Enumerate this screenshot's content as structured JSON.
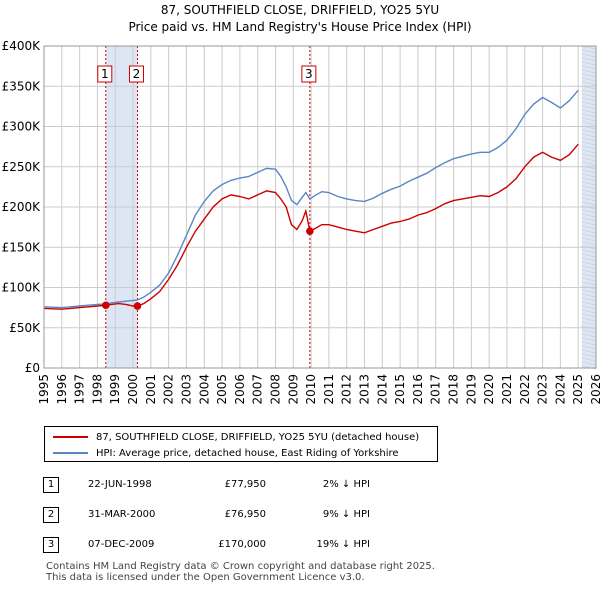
{
  "title": "87, SOUTHFIELD CLOSE, DRIFFIELD, YO25 5YU",
  "subtitle": "Price paid vs. HM Land Registry's House Price Index (HPI)",
  "colors": {
    "price_line": "#cc0000",
    "hpi_line": "#5a86c6",
    "band": "#dde6f5",
    "marker_line": "#cc0000",
    "grid": "#cccccc"
  },
  "legend": {
    "price_label": "87, SOUTHFIELD CLOSE, DRIFFIELD, YO25 5YU (detached house)",
    "hpi_label": "HPI: Average price, detached house, East Riding of Yorkshire"
  },
  "sales": [
    {
      "num": "1",
      "date": "22-JUN-1998",
      "price": "£77,950",
      "hpi": "2% ↓ HPI"
    },
    {
      "num": "2",
      "date": "31-MAR-2000",
      "price": "£76,950",
      "hpi": "9% ↓ HPI"
    },
    {
      "num": "3",
      "date": "07-DEC-2009",
      "price": "£170,000",
      "hpi": "19% ↓ HPI"
    }
  ],
  "footer": {
    "line1": "Contains HM Land Registry data © Crown copyright and database right 2025.",
    "line2": "This data is licensed under the Open Government Licence v3.0."
  },
  "chart_data": {
    "type": "line",
    "title": "87, SOUTHFIELD CLOSE, DRIFFIELD, YO25 5YU",
    "subtitle": "Price paid vs. HM Land Registry's House Price Index (HPI)",
    "xlim": [
      1995,
      2026
    ],
    "ylim": [
      0,
      400000
    ],
    "x_ticks": [
      "1995",
      "1996",
      "1997",
      "1998",
      "1999",
      "2000",
      "2001",
      "2002",
      "2003",
      "2004",
      "2005",
      "2006",
      "2007",
      "2008",
      "2009",
      "2010",
      "2011",
      "2012",
      "2013",
      "2014",
      "2015",
      "2016",
      "2017",
      "2018",
      "2019",
      "2020",
      "2021",
      "2022",
      "2023",
      "2024",
      "2025",
      "2026"
    ],
    "y_ticks": [
      {
        "value": 0,
        "label": "£0"
      },
      {
        "value": 50000,
        "label": "£50K"
      },
      {
        "value": 100000,
        "label": "£100K"
      },
      {
        "value": 150000,
        "label": "£150K"
      },
      {
        "value": 200000,
        "label": "£200K"
      },
      {
        "value": 250000,
        "label": "£250K"
      },
      {
        "value": 300000,
        "label": "£300K"
      },
      {
        "value": 350000,
        "label": "£350K"
      },
      {
        "value": 400000,
        "label": "£400K"
      }
    ],
    "grid": true,
    "legend_position": "below",
    "shaded_periods": [
      [
        1998.47,
        2000.25
      ],
      [
        2025.2,
        2026
      ]
    ],
    "sale_markers": [
      {
        "label": "1",
        "x": 1998.47,
        "y": 77950
      },
      {
        "label": "2",
        "x": 2000.25,
        "y": 76950
      },
      {
        "label": "3",
        "x": 2009.93,
        "y": 170000
      }
    ],
    "series": [
      {
        "name": "87, SOUTHFIELD CLOSE, DRIFFIELD, YO25 5YU (detached house)",
        "x": [
          1995.0,
          1995.5,
          1996.0,
          1996.5,
          1997.0,
          1997.5,
          1998.0,
          1998.47,
          1998.8,
          1999.2,
          1999.6,
          2000.0,
          2000.25,
          2000.6,
          2001.0,
          2001.5,
          2002.0,
          2002.5,
          2003.0,
          2003.5,
          2004.0,
          2004.5,
          2005.0,
          2005.5,
          2006.0,
          2006.5,
          2007.0,
          2007.5,
          2008.0,
          2008.3,
          2008.6,
          2008.9,
          2009.2,
          2009.5,
          2009.7,
          2009.93,
          2010.2,
          2010.6,
          2011.0,
          2011.5,
          2012.0,
          2012.5,
          2013.0,
          2013.5,
          2014.0,
          2014.5,
          2015.0,
          2015.5,
          2016.0,
          2016.5,
          2017.0,
          2017.5,
          2018.0,
          2018.5,
          2019.0,
          2019.5,
          2020.0,
          2020.5,
          2021.0,
          2021.5,
          2022.0,
          2022.5,
          2023.0,
          2023.5,
          2024.0,
          2024.5,
          2025.0
        ],
        "y": [
          74000,
          73500,
          73000,
          74000,
          75000,
          76000,
          77000,
          77950,
          79000,
          80000,
          79000,
          77000,
          76950,
          80000,
          86000,
          95000,
          110000,
          128000,
          150000,
          170000,
          185000,
          200000,
          210000,
          215000,
          213000,
          210000,
          215000,
          220000,
          218000,
          210000,
          200000,
          178000,
          172000,
          183000,
          195000,
          170000,
          173000,
          178000,
          178000,
          175000,
          172000,
          170000,
          168000,
          172000,
          176000,
          180000,
          182000,
          185000,
          190000,
          193000,
          198000,
          204000,
          208000,
          210000,
          212000,
          214000,
          213000,
          218000,
          225000,
          235000,
          250000,
          262000,
          268000,
          262000,
          258000,
          265000,
          278000
        ]
      },
      {
        "name": "HPI: Average price, detached house, East Riding of Yorkshire",
        "x": [
          1995.0,
          1995.5,
          1996.0,
          1996.5,
          1997.0,
          1997.5,
          1998.0,
          1998.47,
          1998.8,
          1999.2,
          1999.6,
          2000.0,
          2000.25,
          2000.6,
          2001.0,
          2001.5,
          2002.0,
          2002.5,
          2003.0,
          2003.5,
          2004.0,
          2004.5,
          2005.0,
          2005.5,
          2006.0,
          2006.5,
          2007.0,
          2007.5,
          2008.0,
          2008.3,
          2008.6,
          2008.9,
          2009.2,
          2009.5,
          2009.7,
          2009.93,
          2010.2,
          2010.6,
          2011.0,
          2011.5,
          2012.0,
          2012.5,
          2013.0,
          2013.5,
          2014.0,
          2014.5,
          2015.0,
          2015.5,
          2016.0,
          2016.5,
          2017.0,
          2017.5,
          2018.0,
          2018.5,
          2019.0,
          2019.5,
          2020.0,
          2020.5,
          2021.0,
          2021.5,
          2022.0,
          2022.5,
          2023.0,
          2023.5,
          2024.0,
          2024.5,
          2025.0
        ],
        "y": [
          76000,
          75500,
          75000,
          76000,
          77000,
          78000,
          79000,
          79500,
          81000,
          82000,
          83000,
          84000,
          84500,
          88000,
          94000,
          103000,
          118000,
          140000,
          165000,
          190000,
          207000,
          220000,
          228000,
          233000,
          236000,
          238000,
          243000,
          248000,
          247000,
          238000,
          225000,
          208000,
          203000,
          212000,
          218000,
          210000,
          214000,
          219000,
          218000,
          213000,
          210000,
          208000,
          207000,
          211000,
          217000,
          222000,
          226000,
          232000,
          237000,
          242000,
          249000,
          255000,
          260000,
          263000,
          266000,
          268000,
          268000,
          274000,
          283000,
          297000,
          315000,
          328000,
          336000,
          330000,
          323000,
          332000,
          345000
        ]
      }
    ]
  }
}
